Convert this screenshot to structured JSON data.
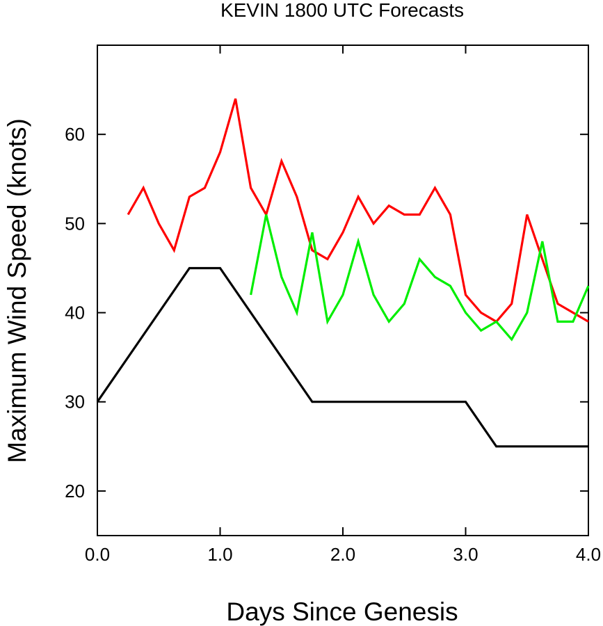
{
  "chart_data": {
    "type": "line",
    "title": "KEVIN 1800 UTC Forecasts",
    "xlabel": "Days Since Genesis",
    "ylabel": "Maximum Wind Speed (knots)",
    "xlim": [
      0,
      4
    ],
    "ylim": [
      15,
      70
    ],
    "xticks": [
      "0.0",
      "1.0",
      "2.0",
      "3.0",
      "4.0"
    ],
    "yticks": [
      "20",
      "30",
      "40",
      "50",
      "60"
    ],
    "grid": false,
    "series": [
      {
        "color": "#000000",
        "x": [
          0,
          0.75,
          1.0,
          1.75,
          3.0,
          3.25,
          4.0
        ],
        "y": [
          30,
          45,
          45,
          30,
          30,
          25,
          25
        ]
      },
      {
        "color": "#ff0000",
        "x": [
          0.25,
          0.375,
          0.5,
          0.625,
          0.75,
          0.875,
          1.0,
          1.125,
          1.25,
          1.375,
          1.5,
          1.625,
          1.75,
          1.875,
          2.0,
          2.125,
          2.25,
          2.375,
          2.5,
          2.625,
          2.75,
          2.875,
          3.0,
          3.125,
          3.25,
          3.375,
          3.5,
          3.625,
          3.75,
          3.875,
          4.0
        ],
        "y": [
          51,
          54,
          50,
          47,
          53,
          54,
          58,
          64,
          54,
          51,
          57,
          53,
          47,
          46,
          49,
          53,
          50,
          52,
          51,
          51,
          54,
          51,
          42,
          40,
          39,
          41,
          51,
          46,
          41,
          40,
          39
        ]
      },
      {
        "color": "#00ee00",
        "x": [
          1.25,
          1.375,
          1.5,
          1.625,
          1.75,
          1.875,
          2.0,
          2.125,
          2.25,
          2.375,
          2.5,
          2.625,
          2.75,
          2.875,
          3.0,
          3.125,
          3.25,
          3.375,
          3.5,
          3.625,
          3.75,
          3.875,
          4.0
        ],
        "y": [
          42,
          51,
          44,
          40,
          49,
          39,
          42,
          48,
          42,
          39,
          41,
          46,
          44,
          43,
          40,
          38,
          39,
          37,
          40,
          48,
          39,
          39,
          43
        ]
      }
    ]
  }
}
